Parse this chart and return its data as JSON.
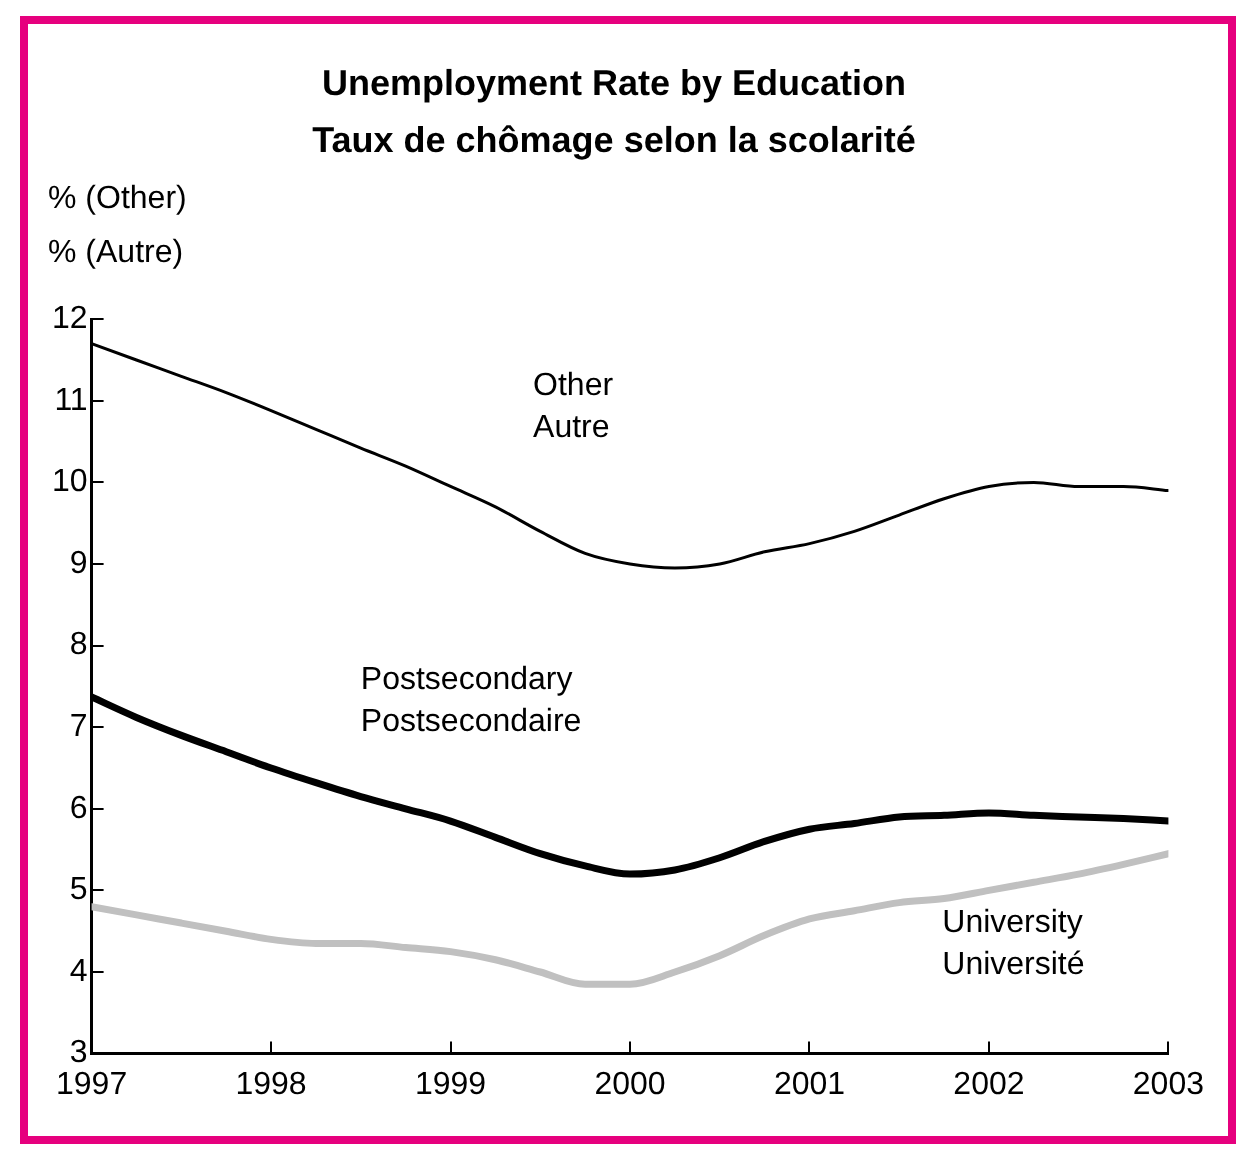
{
  "chart_data": {
    "type": "line",
    "title": "Unemployment Rate by Education\nTaux de chômage selon la scolarité",
    "ylabel": "% (Other)\n% (Autre)",
    "x": [
      1997,
      1997.25,
      1997.5,
      1997.75,
      1998,
      1998.25,
      1998.5,
      1998.75,
      1999,
      1999.25,
      1999.5,
      1999.75,
      2000,
      2000.25,
      2000.5,
      2000.75,
      2001,
      2001.25,
      2001.5,
      2001.75,
      2002,
      2002.25,
      2002.5,
      2002.75,
      2003
    ],
    "series": [
      {
        "name": "Other\nAutre",
        "color": "#000000",
        "values": [
          11.7,
          11.5,
          11.3,
          11.1,
          10.88,
          10.65,
          10.42,
          10.2,
          9.95,
          9.7,
          9.4,
          9.13,
          9.0,
          8.95,
          9.0,
          9.15,
          9.25,
          9.4,
          9.6,
          9.8,
          9.95,
          10.0,
          9.95,
          9.95,
          9.9
        ]
      },
      {
        "name": "Postsecondary\nPostsecondaire",
        "color": "#000000",
        "values": [
          7.37,
          7.12,
          6.9,
          6.7,
          6.5,
          6.32,
          6.15,
          6.0,
          5.85,
          5.65,
          5.45,
          5.3,
          5.2,
          5.25,
          5.4,
          5.6,
          5.75,
          5.82,
          5.9,
          5.92,
          5.95,
          5.92,
          5.9,
          5.88,
          5.85
        ]
      },
      {
        "name": "University\nUniversité",
        "color": "#c0c0c0",
        "values": [
          4.8,
          4.7,
          4.6,
          4.5,
          4.4,
          4.35,
          4.35,
          4.3,
          4.25,
          4.15,
          4.0,
          3.85,
          3.85,
          4.0,
          4.2,
          4.45,
          4.65,
          4.75,
          4.85,
          4.9,
          5.0,
          5.1,
          5.2,
          5.32,
          5.45
        ]
      }
    ],
    "xlim": [
      1997,
      2003
    ],
    "xticks": [
      1997,
      1998,
      1999,
      2000,
      2001,
      2002,
      2003
    ],
    "ylim": [
      3,
      12
    ],
    "yticks": [
      3,
      4,
      5,
      6,
      7,
      8,
      9,
      10,
      11,
      12
    ],
    "grid": false,
    "legend": false,
    "marker": "none",
    "line_style": "solid"
  }
}
